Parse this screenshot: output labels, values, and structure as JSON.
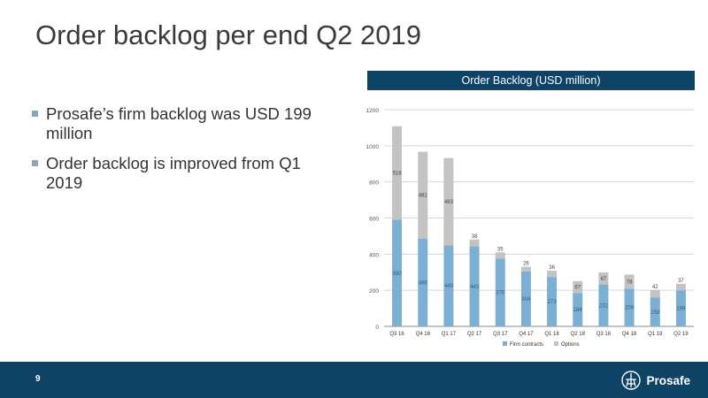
{
  "slide": {
    "title": "Order backlog per end Q2 2019",
    "bullets": [
      "Prosafe’s firm backlog was USD 199 million",
      "Order backlog is improved from Q1 2019"
    ],
    "page_number": "9",
    "logo_text": "Prosafe",
    "logo_icon": "prosafe-rig-icon"
  },
  "colors": {
    "brand_blue": "#0f4366",
    "firm_contracts": "#7bafd4",
    "options": "#c3c3c3"
  },
  "chart_data": {
    "type": "bar",
    "stacked": true,
    "title": "Order Backlog (USD million)",
    "categories": [
      "Q3 16",
      "Q4 16",
      "Q1 17",
      "Q2 17",
      "Q3 17",
      "Q4 17",
      "Q1 18",
      "Q2 18",
      "Q3 18",
      "Q4 18",
      "Q1 19",
      "Q2 19"
    ],
    "series": [
      {
        "name": "Firm contracts",
        "values": [
          590,
          486,
          449,
          443,
          375,
          304,
          273,
          184,
          232,
          209,
          159,
          199
        ]
      },
      {
        "name": "Options",
        "values": [
          518,
          481,
          483,
          38,
          35,
          26,
          36,
          67,
          67,
          78,
          42,
          37
        ]
      }
    ],
    "y_ticks": [
      0,
      200,
      400,
      600,
      800,
      1000,
      1200
    ],
    "ylim": [
      0,
      1200
    ],
    "grid": "horizontal",
    "legend": "bottom-center"
  }
}
